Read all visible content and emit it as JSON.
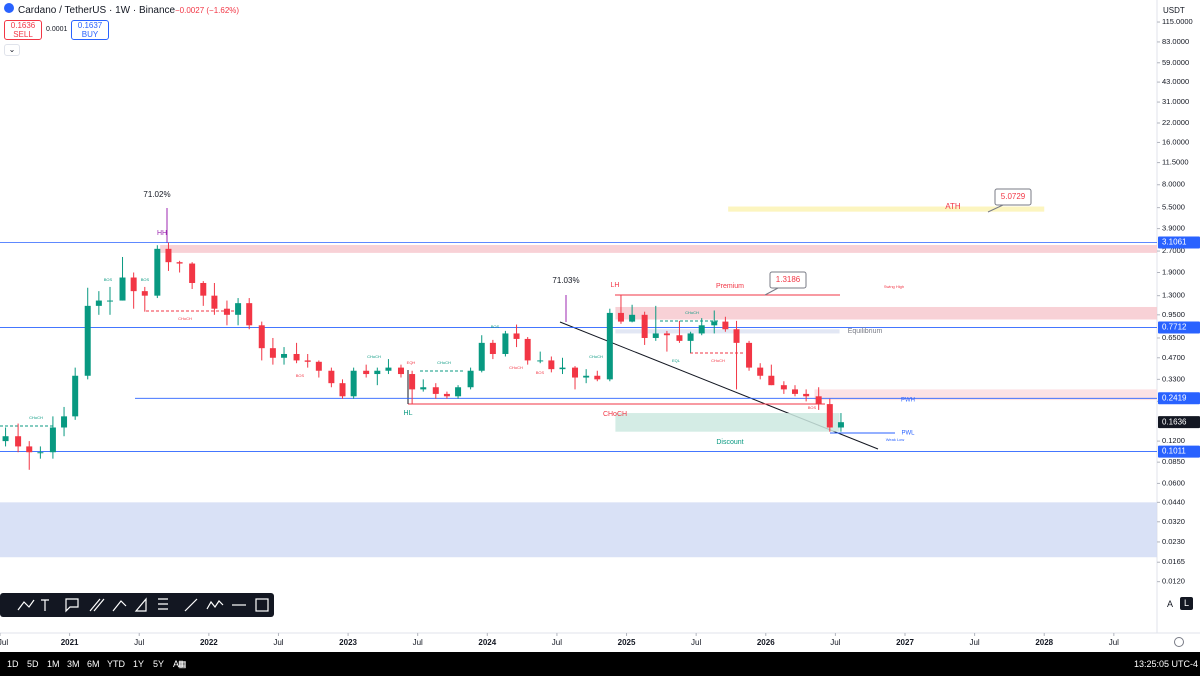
{
  "header": {
    "symbol": "Cardano / TetherUS · 1W · Binance",
    "change": "−0.0027 (−1.62%)",
    "sell_price": "0.1636",
    "sell_label": "SELL",
    "spread": "0.0001",
    "buy_price": "0.1637",
    "buy_label": "BUY",
    "currency": "USDT"
  },
  "footer": {
    "ranges": [
      "1D",
      "5D",
      "1M",
      "3M",
      "6M",
      "YTD",
      "1Y",
      "5Y",
      "All"
    ],
    "clock": "13:25:05 UTC-4",
    "scale_auto": "A",
    "scale_log": "L"
  },
  "chart_data": {
    "type": "candlestick",
    "log_scale": true,
    "up_color": "#089981",
    "down_color": "#f23645",
    "xlim": [
      2020.5,
      2028.81
    ],
    "ylim": [
      0.0073,
      165
    ],
    "xticks": [
      {
        "value": 2020.5,
        "label": "Jul"
      },
      2021,
      {
        "value": 2021.5,
        "label": "Jul"
      },
      2022,
      {
        "value": 2022.5,
        "label": "Jul"
      },
      2023,
      {
        "value": 2023.5,
        "label": "Jul"
      },
      2024,
      {
        "value": 2024.5,
        "label": "Jul"
      },
      2025,
      {
        "value": 2025.5,
        "label": "Jul"
      },
      2026,
      {
        "value": 2026.5,
        "label": "Jul"
      },
      2027,
      {
        "value": 2027.5,
        "label": "Jul"
      },
      2028,
      {
        "value": 2028.5,
        "label": "Jul"
      }
    ],
    "yticks": [
      {
        "value": 115,
        "label": "115.0000"
      },
      {
        "value": 83,
        "label": "83.0000"
      },
      {
        "value": 59,
        "label": "59.0000"
      },
      {
        "value": 43,
        "label": "43.0000"
      },
      {
        "value": 31,
        "label": "31.0000"
      },
      {
        "value": 22,
        "label": "22.0000"
      },
      {
        "value": 16,
        "label": "16.0000"
      },
      {
        "value": 11.5,
        "label": "11.5000"
      },
      {
        "value": 8,
        "label": "8.0000"
      },
      {
        "value": 5.5,
        "label": "5.5000"
      },
      {
        "value": 3.9,
        "label": "3.9000"
      },
      {
        "value": 2.7,
        "label": "2.7000"
      },
      {
        "value": 1.9,
        "label": "1.9000"
      },
      {
        "value": 1.3,
        "label": "1.3000"
      },
      {
        "value": 0.95,
        "label": "0.9500"
      },
      {
        "value": 0.65,
        "label": "0.6500"
      },
      {
        "value": 0.47,
        "label": "0.4700"
      },
      {
        "value": 0.33,
        "label": "0.3300"
      },
      {
        "value": 0.23,
        "label": "0.2300"
      },
      {
        "value": 0.12,
        "label": "0.1200"
      },
      {
        "value": 0.085,
        "label": "0.0850"
      },
      {
        "value": 0.06,
        "label": "0.0600"
      },
      {
        "value": 0.044,
        "label": "0.0440"
      },
      {
        "value": 0.032,
        "label": "0.0320"
      },
      {
        "value": 0.023,
        "label": "0.0230"
      },
      {
        "value": 0.0165,
        "label": "0.0165"
      },
      {
        "value": 0.012,
        "label": "0.0120"
      }
    ],
    "x": [
      2020.54,
      2020.63,
      2020.71,
      2020.79,
      2020.88,
      2020.96,
      2021.04,
      2021.13,
      2021.21,
      2021.29,
      2021.38,
      2021.46,
      2021.54,
      2021.63,
      2021.71,
      2021.79,
      2021.88,
      2021.96,
      2022.04,
      2022.13,
      2022.21,
      2022.29,
      2022.38,
      2022.46,
      2022.54,
      2022.63,
      2022.71,
      2022.79,
      2022.88,
      2022.96,
      2023.04,
      2023.13,
      2023.21,
      2023.29,
      2023.38,
      2023.46,
      2023.54,
      2023.63,
      2023.71,
      2023.79,
      2023.88,
      2023.96,
      2024.04,
      2024.13,
      2024.21,
      2024.29,
      2024.38,
      2024.46,
      2024.54,
      2024.63,
      2024.71,
      2024.79,
      2024.88,
      2024.96,
      2025.04,
      2025.13,
      2025.21,
      2025.29,
      2025.38,
      2025.46,
      2025.54,
      2025.63,
      2025.71,
      2025.79,
      2025.88,
      2025.96,
      2026.04,
      2026.13,
      2026.21,
      2026.29,
      2026.38,
      2026.46,
      2026.54
    ],
    "open": [
      0.12,
      0.13,
      0.11,
      0.1,
      0.1,
      0.15,
      0.18,
      0.35,
      1.1,
      1.2,
      1.2,
      1.75,
      1.4,
      1.3,
      2.8,
      2.25,
      2.2,
      1.6,
      1.3,
      1.05,
      0.95,
      1.15,
      0.8,
      0.55,
      0.47,
      0.5,
      0.45,
      0.44,
      0.38,
      0.31,
      0.25,
      0.38,
      0.36,
      0.38,
      0.4,
      0.36,
      0.28,
      0.29,
      0.26,
      0.25,
      0.29,
      0.38,
      0.6,
      0.5,
      0.7,
      0.64,
      0.45,
      0.45,
      0.39,
      0.4,
      0.34,
      0.35,
      0.33,
      0.98,
      0.85,
      0.95,
      0.65,
      0.7,
      0.68,
      0.62,
      0.7,
      0.8,
      0.85,
      0.75,
      0.6,
      0.4,
      0.35,
      0.3,
      0.28,
      0.26,
      0.25,
      0.22,
      0.15
    ],
    "high": [
      0.15,
      0.16,
      0.12,
      0.11,
      0.18,
      0.21,
      0.4,
      1.48,
      1.4,
      1.5,
      2.45,
      1.9,
      1.5,
      2.97,
      3.1,
      2.3,
      2.25,
      1.65,
      1.6,
      1.2,
      1.25,
      1.25,
      0.85,
      0.65,
      0.56,
      0.6,
      0.5,
      0.45,
      0.4,
      0.33,
      0.4,
      0.42,
      0.4,
      0.46,
      0.42,
      0.38,
      0.33,
      0.31,
      0.27,
      0.3,
      0.4,
      0.68,
      0.63,
      0.73,
      0.81,
      0.66,
      0.52,
      0.48,
      0.47,
      0.41,
      0.39,
      0.38,
      1.05,
      1.32,
      1.12,
      1,
      1.1,
      0.73,
      0.86,
      0.72,
      0.9,
      1.02,
      0.92,
      0.86,
      0.62,
      0.43,
      0.42,
      0.32,
      0.3,
      0.28,
      0.29,
      0.24,
      0.19
    ],
    "low": [
      0.11,
      0.1,
      0.075,
      0.09,
      0.09,
      0.13,
      0.17,
      0.33,
      0.95,
      0.95,
      1.2,
      1.05,
      1,
      1.25,
      1.95,
      1.9,
      1.45,
      1.1,
      0.95,
      0.8,
      0.8,
      0.75,
      0.45,
      0.42,
      0.42,
      0.43,
      0.4,
      0.34,
      0.29,
      0.24,
      0.24,
      0.34,
      0.3,
      0.36,
      0.34,
      0.22,
      0.27,
      0.24,
      0.24,
      0.24,
      0.28,
      0.37,
      0.46,
      0.48,
      0.56,
      0.42,
      0.43,
      0.37,
      0.36,
      0.28,
      0.31,
      0.32,
      0.32,
      0.82,
      0.84,
      0.58,
      0.62,
      0.52,
      0.6,
      0.51,
      0.68,
      0.7,
      0.72,
      0.28,
      0.38,
      0.33,
      0.3,
      0.26,
      0.25,
      0.23,
      0.2,
      0.14,
      0.14
    ],
    "close": [
      0.13,
      0.11,
      0.1,
      0.1,
      0.15,
      0.18,
      0.35,
      1.1,
      1.2,
      1.2,
      1.75,
      1.4,
      1.3,
      2.8,
      2.25,
      2.2,
      1.6,
      1.3,
      1.05,
      0.95,
      1.15,
      0.8,
      0.55,
      0.47,
      0.5,
      0.45,
      0.44,
      0.38,
      0.31,
      0.25,
      0.38,
      0.36,
      0.38,
      0.4,
      0.36,
      0.28,
      0.29,
      0.26,
      0.25,
      0.29,
      0.38,
      0.6,
      0.5,
      0.7,
      0.64,
      0.45,
      0.45,
      0.39,
      0.4,
      0.34,
      0.35,
      0.33,
      0.98,
      0.85,
      0.95,
      0.65,
      0.7,
      0.68,
      0.62,
      0.7,
      0.8,
      0.85,
      0.75,
      0.6,
      0.4,
      0.35,
      0.3,
      0.28,
      0.26,
      0.25,
      0.22,
      0.15,
      0.1636
    ],
    "price_levels": [
      {
        "value": 3.1061,
        "color": "#2962ff"
      },
      {
        "value": 0.7712,
        "color": "#2962ff"
      },
      {
        "value": 0.2419,
        "color": "#2962ff"
      },
      {
        "value": 0.1636,
        "color": "#131722"
      },
      {
        "value": 0.1011,
        "color": "#2962ff"
      }
    ],
    "zones": [
      {
        "ylim": [
          2.62,
          2.98
        ],
        "xlim": [
          2021.65,
          2028.81
        ],
        "color": "#f7c9cf"
      },
      {
        "ylim": [
          0.88,
          1.08
        ],
        "xlim": [
          2024.92,
          2028.81
        ],
        "color": "#f7c9cf"
      },
      {
        "ylim": [
          0.7,
          0.75
        ],
        "xlim": [
          2024.92,
          2026.53
        ],
        "color": "#dde3f2"
      },
      {
        "ylim": [
          0.235,
          0.28
        ],
        "xlim": [
          2026.35,
          2028.81
        ],
        "color": "#fbdde0"
      },
      {
        "ylim": [
          0.14,
          0.19
        ],
        "xlim": [
          2024.92,
          2026.53
        ],
        "color": "#cde9e1"
      },
      {
        "ylim": [
          5.15,
          5.6
        ],
        "xlim": [
          2025.73,
          2028.0
        ],
        "color": "#fbf3b4"
      },
      {
        "ylim": [
          0.0179,
          0.044
        ],
        "xlim": [
          2020.5,
          2028.81
        ],
        "color": "#d2dcf5"
      }
    ],
    "annotations": [
      {
        "text": "71.02%",
        "color": "#131722"
      },
      {
        "text": "HH",
        "color": "#9c27b0"
      },
      {
        "text": "71.03%",
        "color": "#131722"
      },
      {
        "text": "LH",
        "color": "#f23645"
      },
      {
        "text": "Premium",
        "color": "#f23645"
      },
      {
        "text": "Swing High",
        "color": "#f23645"
      },
      {
        "text": "Equilibrium",
        "color": "#787b86"
      },
      {
        "text": "ATH",
        "color": "#f23645"
      },
      {
        "text": "PWH",
        "color": "#2962ff"
      },
      {
        "text": "PWL",
        "color": "#2962ff"
      },
      {
        "text": "Weak Low",
        "color": "#2962ff"
      },
      {
        "text": "Discount",
        "color": "#089981"
      },
      {
        "text": "HL",
        "color": "#089981"
      },
      {
        "text": "CHoCH",
        "color": "#f23645"
      },
      {
        "text": "BOS",
        "color": "#089981"
      },
      {
        "text": "BOS",
        "color": "#089981"
      },
      {
        "text": "CHoCH",
        "color": "#f23645"
      },
      {
        "text": "CHoCH",
        "color": "#089981"
      },
      {
        "text": "CHoCH",
        "color": "#089981"
      },
      {
        "text": "EQH",
        "color": "#f23645"
      },
      {
        "text": "CHoCH",
        "color": "#089981"
      },
      {
        "text": "BOS",
        "color": "#f23645"
      },
      {
        "text": "BOS",
        "color": "#089981"
      },
      {
        "text": "CHoCH",
        "color": "#f23645"
      },
      {
        "text": "BOS",
        "color": "#f23645"
      },
      {
        "text": "CHoCH",
        "color": "#089981"
      },
      {
        "text": "CHoCH",
        "color": "#089981"
      },
      {
        "text": "CHoCH",
        "color": "#f23645"
      },
      {
        "text": "EQL",
        "color": "#089981"
      },
      {
        "text": "BOS",
        "color": "#f23645"
      }
    ],
    "callouts": [
      {
        "text": "1.3186"
      },
      {
        "text": "5.0729"
      }
    ]
  }
}
